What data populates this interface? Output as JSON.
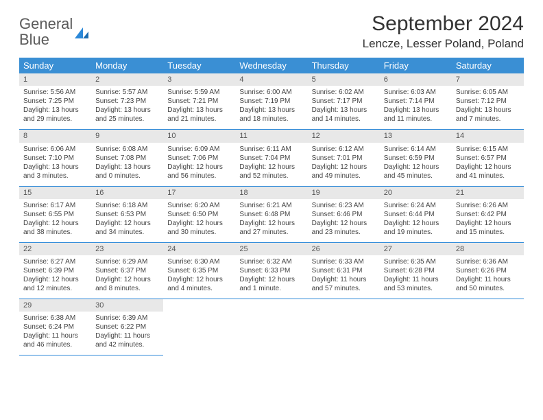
{
  "logo": {
    "word1": "General",
    "word2": "Blue"
  },
  "title": "September 2024",
  "location": "Lencze, Lesser Poland, Poland",
  "colors": {
    "header_bg": "#3a8fd4",
    "header_text": "#ffffff",
    "daynum_bg": "#e8e8e8",
    "border": "#2b88d8",
    "text": "#444444"
  },
  "weekdays": [
    "Sunday",
    "Monday",
    "Tuesday",
    "Wednesday",
    "Thursday",
    "Friday",
    "Saturday"
  ],
  "weeks": [
    [
      {
        "n": "1",
        "sr": "Sunrise: 5:56 AM",
        "ss": "Sunset: 7:25 PM",
        "d1": "Daylight: 13 hours",
        "d2": "and 29 minutes."
      },
      {
        "n": "2",
        "sr": "Sunrise: 5:57 AM",
        "ss": "Sunset: 7:23 PM",
        "d1": "Daylight: 13 hours",
        "d2": "and 25 minutes."
      },
      {
        "n": "3",
        "sr": "Sunrise: 5:59 AM",
        "ss": "Sunset: 7:21 PM",
        "d1": "Daylight: 13 hours",
        "d2": "and 21 minutes."
      },
      {
        "n": "4",
        "sr": "Sunrise: 6:00 AM",
        "ss": "Sunset: 7:19 PM",
        "d1": "Daylight: 13 hours",
        "d2": "and 18 minutes."
      },
      {
        "n": "5",
        "sr": "Sunrise: 6:02 AM",
        "ss": "Sunset: 7:17 PM",
        "d1": "Daylight: 13 hours",
        "d2": "and 14 minutes."
      },
      {
        "n": "6",
        "sr": "Sunrise: 6:03 AM",
        "ss": "Sunset: 7:14 PM",
        "d1": "Daylight: 13 hours",
        "d2": "and 11 minutes."
      },
      {
        "n": "7",
        "sr": "Sunrise: 6:05 AM",
        "ss": "Sunset: 7:12 PM",
        "d1": "Daylight: 13 hours",
        "d2": "and 7 minutes."
      }
    ],
    [
      {
        "n": "8",
        "sr": "Sunrise: 6:06 AM",
        "ss": "Sunset: 7:10 PM",
        "d1": "Daylight: 13 hours",
        "d2": "and 3 minutes."
      },
      {
        "n": "9",
        "sr": "Sunrise: 6:08 AM",
        "ss": "Sunset: 7:08 PM",
        "d1": "Daylight: 13 hours",
        "d2": "and 0 minutes."
      },
      {
        "n": "10",
        "sr": "Sunrise: 6:09 AM",
        "ss": "Sunset: 7:06 PM",
        "d1": "Daylight: 12 hours",
        "d2": "and 56 minutes."
      },
      {
        "n": "11",
        "sr": "Sunrise: 6:11 AM",
        "ss": "Sunset: 7:04 PM",
        "d1": "Daylight: 12 hours",
        "d2": "and 52 minutes."
      },
      {
        "n": "12",
        "sr": "Sunrise: 6:12 AM",
        "ss": "Sunset: 7:01 PM",
        "d1": "Daylight: 12 hours",
        "d2": "and 49 minutes."
      },
      {
        "n": "13",
        "sr": "Sunrise: 6:14 AM",
        "ss": "Sunset: 6:59 PM",
        "d1": "Daylight: 12 hours",
        "d2": "and 45 minutes."
      },
      {
        "n": "14",
        "sr": "Sunrise: 6:15 AM",
        "ss": "Sunset: 6:57 PM",
        "d1": "Daylight: 12 hours",
        "d2": "and 41 minutes."
      }
    ],
    [
      {
        "n": "15",
        "sr": "Sunrise: 6:17 AM",
        "ss": "Sunset: 6:55 PM",
        "d1": "Daylight: 12 hours",
        "d2": "and 38 minutes."
      },
      {
        "n": "16",
        "sr": "Sunrise: 6:18 AM",
        "ss": "Sunset: 6:53 PM",
        "d1": "Daylight: 12 hours",
        "d2": "and 34 minutes."
      },
      {
        "n": "17",
        "sr": "Sunrise: 6:20 AM",
        "ss": "Sunset: 6:50 PM",
        "d1": "Daylight: 12 hours",
        "d2": "and 30 minutes."
      },
      {
        "n": "18",
        "sr": "Sunrise: 6:21 AM",
        "ss": "Sunset: 6:48 PM",
        "d1": "Daylight: 12 hours",
        "d2": "and 27 minutes."
      },
      {
        "n": "19",
        "sr": "Sunrise: 6:23 AM",
        "ss": "Sunset: 6:46 PM",
        "d1": "Daylight: 12 hours",
        "d2": "and 23 minutes."
      },
      {
        "n": "20",
        "sr": "Sunrise: 6:24 AM",
        "ss": "Sunset: 6:44 PM",
        "d1": "Daylight: 12 hours",
        "d2": "and 19 minutes."
      },
      {
        "n": "21",
        "sr": "Sunrise: 6:26 AM",
        "ss": "Sunset: 6:42 PM",
        "d1": "Daylight: 12 hours",
        "d2": "and 15 minutes."
      }
    ],
    [
      {
        "n": "22",
        "sr": "Sunrise: 6:27 AM",
        "ss": "Sunset: 6:39 PM",
        "d1": "Daylight: 12 hours",
        "d2": "and 12 minutes."
      },
      {
        "n": "23",
        "sr": "Sunrise: 6:29 AM",
        "ss": "Sunset: 6:37 PM",
        "d1": "Daylight: 12 hours",
        "d2": "and 8 minutes."
      },
      {
        "n": "24",
        "sr": "Sunrise: 6:30 AM",
        "ss": "Sunset: 6:35 PM",
        "d1": "Daylight: 12 hours",
        "d2": "and 4 minutes."
      },
      {
        "n": "25",
        "sr": "Sunrise: 6:32 AM",
        "ss": "Sunset: 6:33 PM",
        "d1": "Daylight: 12 hours",
        "d2": "and 1 minute."
      },
      {
        "n": "26",
        "sr": "Sunrise: 6:33 AM",
        "ss": "Sunset: 6:31 PM",
        "d1": "Daylight: 11 hours",
        "d2": "and 57 minutes."
      },
      {
        "n": "27",
        "sr": "Sunrise: 6:35 AM",
        "ss": "Sunset: 6:28 PM",
        "d1": "Daylight: 11 hours",
        "d2": "and 53 minutes."
      },
      {
        "n": "28",
        "sr": "Sunrise: 6:36 AM",
        "ss": "Sunset: 6:26 PM",
        "d1": "Daylight: 11 hours",
        "d2": "and 50 minutes."
      }
    ],
    [
      {
        "n": "29",
        "sr": "Sunrise: 6:38 AM",
        "ss": "Sunset: 6:24 PM",
        "d1": "Daylight: 11 hours",
        "d2": "and 46 minutes."
      },
      {
        "n": "30",
        "sr": "Sunrise: 6:39 AM",
        "ss": "Sunset: 6:22 PM",
        "d1": "Daylight: 11 hours",
        "d2": "and 42 minutes."
      },
      null,
      null,
      null,
      null,
      null
    ]
  ]
}
